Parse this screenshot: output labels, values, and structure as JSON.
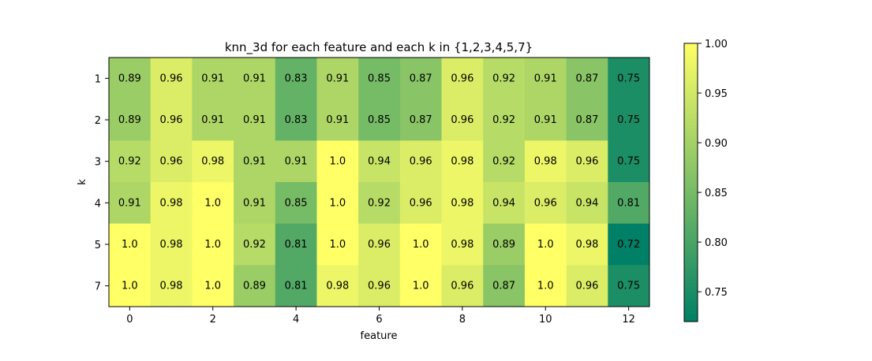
{
  "chart_data": {
    "type": "heatmap",
    "title": "knn_3d for each feature and each k in {1,2,3,4,5,7}",
    "xlabel": "feature",
    "ylabel": "k",
    "x_categories": [
      0,
      1,
      2,
      3,
      4,
      5,
      6,
      7,
      8,
      9,
      10,
      11,
      12
    ],
    "x_tick_labels": [
      "0",
      "2",
      "4",
      "6",
      "8",
      "10",
      "12"
    ],
    "x_tick_values": [
      0,
      2,
      4,
      6,
      8,
      10,
      12
    ],
    "y_categories": [
      "1",
      "2",
      "3",
      "4",
      "5",
      "7"
    ],
    "values": [
      [
        0.89,
        0.96,
        0.91,
        0.91,
        0.83,
        0.91,
        0.85,
        0.87,
        0.96,
        0.92,
        0.91,
        0.87,
        0.75
      ],
      [
        0.89,
        0.96,
        0.91,
        0.91,
        0.83,
        0.91,
        0.85,
        0.87,
        0.96,
        0.92,
        0.91,
        0.87,
        0.75
      ],
      [
        0.92,
        0.96,
        0.98,
        0.91,
        0.91,
        1.0,
        0.94,
        0.96,
        0.98,
        0.92,
        0.98,
        0.96,
        0.75
      ],
      [
        0.91,
        0.98,
        1.0,
        0.91,
        0.85,
        1.0,
        0.92,
        0.96,
        0.98,
        0.94,
        0.96,
        0.94,
        0.81
      ],
      [
        1.0,
        0.98,
        1.0,
        0.92,
        0.81,
        1.0,
        0.96,
        1.0,
        0.98,
        0.89,
        1.0,
        0.98,
        0.72
      ],
      [
        1.0,
        0.98,
        1.0,
        0.89,
        0.81,
        0.98,
        0.96,
        1.0,
        0.96,
        0.87,
        1.0,
        0.96,
        0.75
      ]
    ],
    "value_labels": [
      [
        "0.89",
        "0.96",
        "0.91",
        "0.91",
        "0.83",
        "0.91",
        "0.85",
        "0.87",
        "0.96",
        "0.92",
        "0.91",
        "0.87",
        "0.75"
      ],
      [
        "0.89",
        "0.96",
        "0.91",
        "0.91",
        "0.83",
        "0.91",
        "0.85",
        "0.87",
        "0.96",
        "0.92",
        "0.91",
        "0.87",
        "0.75"
      ],
      [
        "0.92",
        "0.96",
        "0.98",
        "0.91",
        "0.91",
        "1.0",
        "0.94",
        "0.96",
        "0.98",
        "0.92",
        "0.98",
        "0.96",
        "0.75"
      ],
      [
        "0.91",
        "0.98",
        "1.0",
        "0.91",
        "0.85",
        "1.0",
        "0.92",
        "0.96",
        "0.98",
        "0.94",
        "0.96",
        "0.94",
        "0.81"
      ],
      [
        "1.0",
        "0.98",
        "1.0",
        "0.92",
        "0.81",
        "1.0",
        "0.96",
        "1.0",
        "0.98",
        "0.89",
        "1.0",
        "0.98",
        "0.72"
      ],
      [
        "1.0",
        "0.98",
        "1.0",
        "0.89",
        "0.81",
        "0.98",
        "0.96",
        "1.0",
        "0.96",
        "0.87",
        "1.0",
        "0.96",
        "0.75"
      ]
    ],
    "colormap": "summer",
    "colormap_low": "#008066",
    "colormap_high": "#ffff66",
    "vmin": 0.72,
    "vmax": 1.0,
    "colorbar_ticks": [
      0.75,
      0.8,
      0.85,
      0.9,
      0.95,
      1.0
    ],
    "colorbar_tick_labels": [
      "0.75",
      "0.80",
      "0.85",
      "0.90",
      "0.95",
      "1.00"
    ],
    "grid": false,
    "legend": "colorbar-right"
  }
}
